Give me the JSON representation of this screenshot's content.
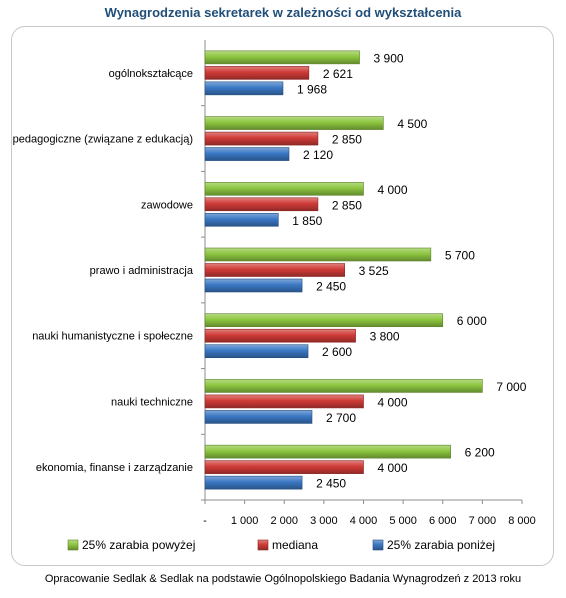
{
  "title": "Wynagrodzenia sekretarek w zależności od wykształcenia",
  "footer": "Opracowanie Sedlak & Sedlak na podstawie Ogólnopolskiego Badania Wynagrodzeń z 2013 roku",
  "colors": {
    "top25": "#8dc640",
    "median": "#cf3b37",
    "bottom25": "#3a78c4"
  },
  "chart_data": {
    "type": "bar",
    "orientation": "horizontal",
    "categories": [
      "ogólnokształcące",
      "pedagogiczne (związane z edukacją)",
      "zawodowe",
      "prawo i administracja",
      "nauki humanistyczne i społeczne",
      "nauki techniczne",
      "ekonomia, finanse i zarządzanie"
    ],
    "series": [
      {
        "name": "25% zarabia powyżej",
        "values": [
          3900,
          4500,
          4000,
          5700,
          6000,
          7000,
          6200
        ],
        "labels": [
          "3 900",
          "4 500",
          "4 000",
          "5 700",
          "6 000",
          "7 000",
          "6 200"
        ]
      },
      {
        "name": "mediana",
        "values": [
          2621,
          2850,
          2850,
          3525,
          3800,
          4000,
          4000
        ],
        "labels": [
          "2 621",
          "2 850",
          "2 850",
          "3 525",
          "3 800",
          "4 000",
          "4 000"
        ]
      },
      {
        "name": "25% zarabia poniżej",
        "values": [
          1968,
          2120,
          1850,
          2450,
          2600,
          2700,
          2450
        ],
        "labels": [
          "1 968",
          "2 120",
          "1 850",
          "2 450",
          "2 600",
          "2 700",
          "2 450"
        ]
      }
    ],
    "xlim": [
      0,
      8000
    ],
    "xticks": [
      "-",
      "1 000",
      "2 000",
      "3 000",
      "4 000",
      "5 000",
      "6 000",
      "7 000",
      "8 000"
    ],
    "grid": false,
    "legend": "bottom"
  }
}
